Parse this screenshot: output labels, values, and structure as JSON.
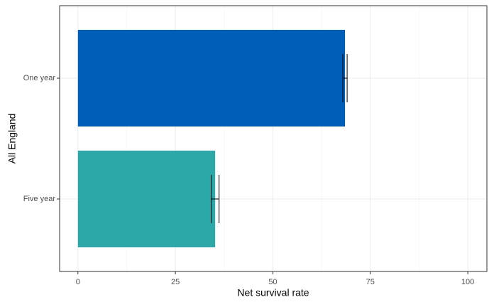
{
  "chart_data": {
    "type": "hbar_errorbar",
    "categories": [
      "One year",
      "Five year"
    ],
    "values": [
      68.5,
      35.2
    ],
    "errors": [
      0.55,
      1.0
    ],
    "colors": [
      "#005EB8",
      "#2CA8A8"
    ],
    "xlabel": "Net survival rate",
    "ylabel": "All England",
    "xlim": [
      -4.7,
      104.9
    ],
    "xticks": [
      0,
      25,
      50,
      75,
      100
    ],
    "grid": true
  }
}
